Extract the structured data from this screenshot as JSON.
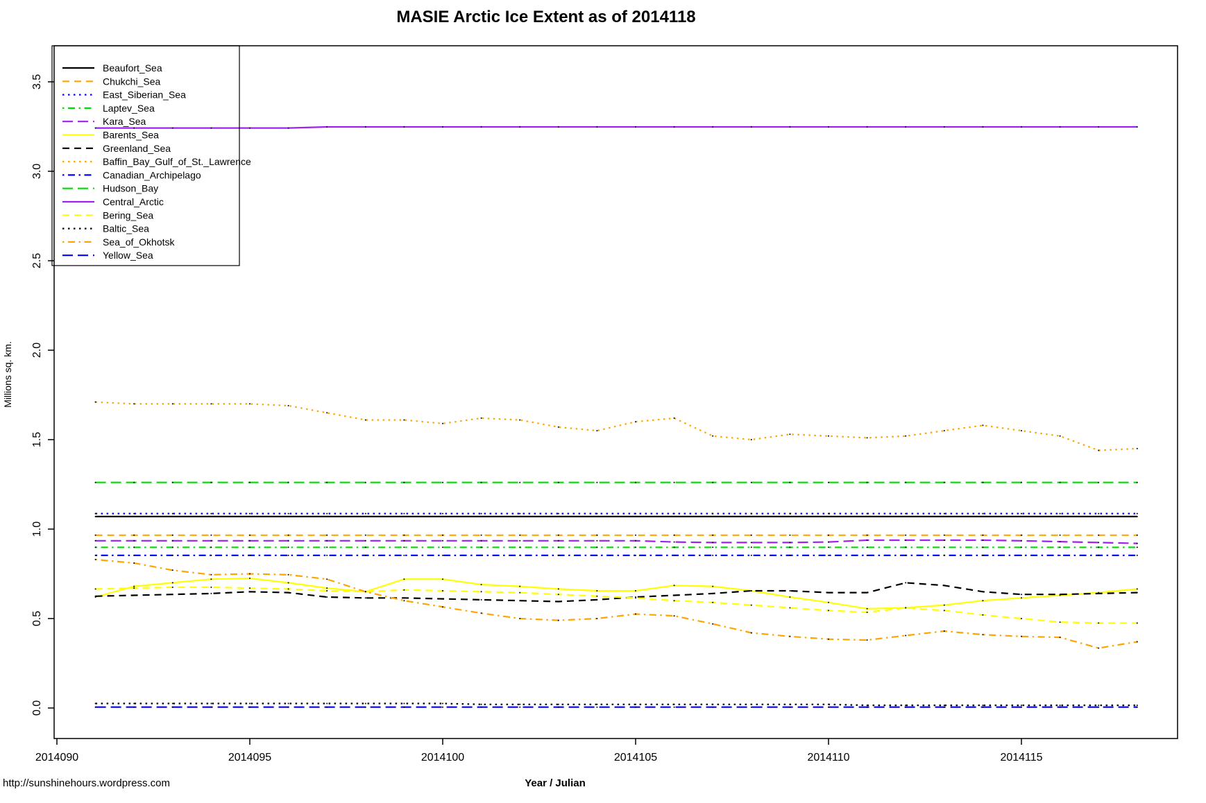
{
  "title": "MASIE Arctic Ice Extent as of 2014118",
  "footer": {
    "credit": "http://sunshinehours.wordpress.com"
  },
  "chart_data": {
    "type": "line",
    "title": "MASIE Arctic Ice Extent as of 2014118",
    "xlabel": "Year / Julian",
    "ylabel": "Millions sq. km.",
    "grid": false,
    "legend_position": "top-left",
    "ylim": [
      0,
      3.5
    ],
    "y_tick_values": [
      0.0,
      0.5,
      1.0,
      1.5,
      2.0,
      2.5,
      3.0,
      3.5
    ],
    "y_tick_labels": [
      "0.0",
      "0.5",
      "1.0",
      "1.5",
      "2.0",
      "2.5",
      "3.0",
      "3.5"
    ],
    "x_tick_values": [
      90,
      95,
      100,
      105,
      110,
      115
    ],
    "x_tick_labels": [
      "2014090",
      "2014095",
      "2014100",
      "2014105",
      "2014110",
      "2014115"
    ],
    "days": [
      91,
      92,
      93,
      94,
      95,
      96,
      97,
      98,
      99,
      100,
      101,
      102,
      103,
      104,
      105,
      106,
      107,
      108,
      109,
      110,
      111,
      112,
      113,
      114,
      115,
      116,
      117,
      118
    ],
    "series": [
      {
        "name": "Beaufort_Sea",
        "color": "#000000",
        "dash": "solid",
        "values": [
          1.07,
          1.07,
          1.07,
          1.07,
          1.07,
          1.07,
          1.07,
          1.07,
          1.07,
          1.07,
          1.07,
          1.07,
          1.07,
          1.07,
          1.07,
          1.07,
          1.07,
          1.07,
          1.07,
          1.07,
          1.07,
          1.07,
          1.07,
          1.07,
          1.07,
          1.07,
          1.07,
          1.07
        ]
      },
      {
        "name": "Chukchi_Sea",
        "color": "#FFA500",
        "dash": "dashed",
        "values": [
          0.966,
          0.966,
          0.966,
          0.966,
          0.966,
          0.966,
          0.966,
          0.966,
          0.966,
          0.966,
          0.966,
          0.966,
          0.966,
          0.966,
          0.966,
          0.966,
          0.966,
          0.966,
          0.966,
          0.966,
          0.966,
          0.966,
          0.966,
          0.966,
          0.966,
          0.966,
          0.966,
          0.966
        ]
      },
      {
        "name": "East_Siberian_Sea",
        "color": "#0000FF",
        "dash": "dotted",
        "values": [
          1.087,
          1.087,
          1.087,
          1.087,
          1.087,
          1.087,
          1.087,
          1.087,
          1.087,
          1.087,
          1.087,
          1.087,
          1.087,
          1.087,
          1.087,
          1.087,
          1.087,
          1.087,
          1.087,
          1.087,
          1.087,
          1.087,
          1.087,
          1.087,
          1.087,
          1.087,
          1.087,
          1.087
        ]
      },
      {
        "name": "Laptev_Sea",
        "color": "#00DD00",
        "dash": "dashdot",
        "values": [
          0.898,
          0.898,
          0.898,
          0.898,
          0.898,
          0.898,
          0.898,
          0.898,
          0.898,
          0.898,
          0.898,
          0.898,
          0.898,
          0.898,
          0.898,
          0.898,
          0.898,
          0.898,
          0.898,
          0.898,
          0.898,
          0.898,
          0.898,
          0.898,
          0.898,
          0.898,
          0.898,
          0.898
        ]
      },
      {
        "name": "Kara_Sea",
        "color": "#A020F0",
        "dash": "longdash",
        "values": [
          0.935,
          0.935,
          0.935,
          0.935,
          0.935,
          0.935,
          0.935,
          0.935,
          0.935,
          0.935,
          0.935,
          0.935,
          0.935,
          0.935,
          0.935,
          0.928,
          0.925,
          0.925,
          0.925,
          0.928,
          0.938,
          0.938,
          0.938,
          0.938,
          0.935,
          0.93,
          0.925,
          0.92
        ]
      },
      {
        "name": "Barents_Sea",
        "color": "#FFFF00",
        "dash": "solid",
        "values": [
          0.62,
          0.68,
          0.7,
          0.72,
          0.725,
          0.7,
          0.67,
          0.65,
          0.72,
          0.72,
          0.69,
          0.68,
          0.665,
          0.655,
          0.655,
          0.685,
          0.68,
          0.655,
          0.62,
          0.59,
          0.555,
          0.56,
          0.575,
          0.6,
          0.615,
          0.63,
          0.645,
          0.665
        ]
      },
      {
        "name": "Greenland_Sea",
        "color": "#000000",
        "dash": "dashed",
        "values": [
          0.625,
          0.63,
          0.635,
          0.64,
          0.65,
          0.645,
          0.62,
          0.615,
          0.615,
          0.61,
          0.605,
          0.6,
          0.595,
          0.605,
          0.62,
          0.63,
          0.64,
          0.655,
          0.655,
          0.645,
          0.645,
          0.7,
          0.685,
          0.65,
          0.635,
          0.635,
          0.64,
          0.645
        ]
      },
      {
        "name": "Baffin_Bay_Gulf_of_St._Lawrence",
        "color": "#FFA500",
        "dash": "dotted",
        "values": [
          1.71,
          1.7,
          1.7,
          1.7,
          1.7,
          1.69,
          1.65,
          1.61,
          1.61,
          1.59,
          1.62,
          1.61,
          1.57,
          1.55,
          1.6,
          1.62,
          1.52,
          1.5,
          1.53,
          1.52,
          1.51,
          1.52,
          1.55,
          1.58,
          1.55,
          1.52,
          1.44,
          1.45
        ]
      },
      {
        "name": "Canadian_Archipelago",
        "color": "#0000FF",
        "dash": "dashdot",
        "values": [
          0.853,
          0.853,
          0.853,
          0.853,
          0.853,
          0.853,
          0.853,
          0.853,
          0.853,
          0.853,
          0.853,
          0.853,
          0.853,
          0.853,
          0.853,
          0.853,
          0.853,
          0.853,
          0.853,
          0.853,
          0.853,
          0.853,
          0.853,
          0.853,
          0.853,
          0.853,
          0.853,
          0.853
        ]
      },
      {
        "name": "Hudson_Bay",
        "color": "#00DD00",
        "dash": "longdash",
        "values": [
          1.261,
          1.261,
          1.261,
          1.261,
          1.261,
          1.261,
          1.261,
          1.261,
          1.261,
          1.261,
          1.261,
          1.261,
          1.261,
          1.261,
          1.261,
          1.261,
          1.261,
          1.261,
          1.261,
          1.261,
          1.261,
          1.261,
          1.261,
          1.261,
          1.261,
          1.261,
          1.261,
          1.261
        ]
      },
      {
        "name": "Central_Arctic",
        "color": "#A020F0",
        "dash": "solid",
        "values": [
          3.242,
          3.242,
          3.242,
          3.242,
          3.242,
          3.242,
          3.248,
          3.248,
          3.248,
          3.248,
          3.248,
          3.248,
          3.248,
          3.248,
          3.248,
          3.248,
          3.248,
          3.248,
          3.248,
          3.248,
          3.248,
          3.248,
          3.248,
          3.248,
          3.248,
          3.248,
          3.248,
          3.248
        ]
      },
      {
        "name": "Bering_Sea",
        "color": "#FFFF00",
        "dash": "dashed",
        "values": [
          0.665,
          0.67,
          0.675,
          0.675,
          0.67,
          0.665,
          0.655,
          0.65,
          0.66,
          0.655,
          0.65,
          0.645,
          0.635,
          0.625,
          0.615,
          0.6,
          0.59,
          0.575,
          0.56,
          0.545,
          0.535,
          0.56,
          0.545,
          0.52,
          0.5,
          0.48,
          0.475,
          0.475
        ]
      },
      {
        "name": "Baltic_Sea",
        "color": "#000000",
        "dash": "dotted",
        "values": [
          0.025,
          0.025,
          0.025,
          0.025,
          0.025,
          0.025,
          0.025,
          0.025,
          0.025,
          0.025,
          0.02,
          0.02,
          0.02,
          0.02,
          0.02,
          0.02,
          0.02,
          0.02,
          0.02,
          0.02,
          0.015,
          0.015,
          0.015,
          0.015,
          0.015,
          0.015,
          0.015,
          0.015
        ]
      },
      {
        "name": "Sea_of_Okhotsk",
        "color": "#FFA500",
        "dash": "dashdot",
        "values": [
          0.83,
          0.81,
          0.77,
          0.745,
          0.75,
          0.745,
          0.72,
          0.65,
          0.6,
          0.565,
          0.53,
          0.5,
          0.49,
          0.5,
          0.525,
          0.515,
          0.47,
          0.42,
          0.4,
          0.385,
          0.38,
          0.405,
          0.43,
          0.41,
          0.4,
          0.395,
          0.335,
          0.37
        ]
      },
      {
        "name": "Yellow_Sea",
        "color": "#0000FF",
        "dash": "longdash",
        "values": [
          0.005,
          0.005,
          0.005,
          0.005,
          0.005,
          0.005,
          0.005,
          0.005,
          0.005,
          0.005,
          0.005,
          0.005,
          0.005,
          0.005,
          0.005,
          0.005,
          0.005,
          0.005,
          0.005,
          0.005,
          0.005,
          0.005,
          0.005,
          0.005,
          0.005,
          0.005,
          0.005,
          0.005
        ]
      }
    ]
  }
}
